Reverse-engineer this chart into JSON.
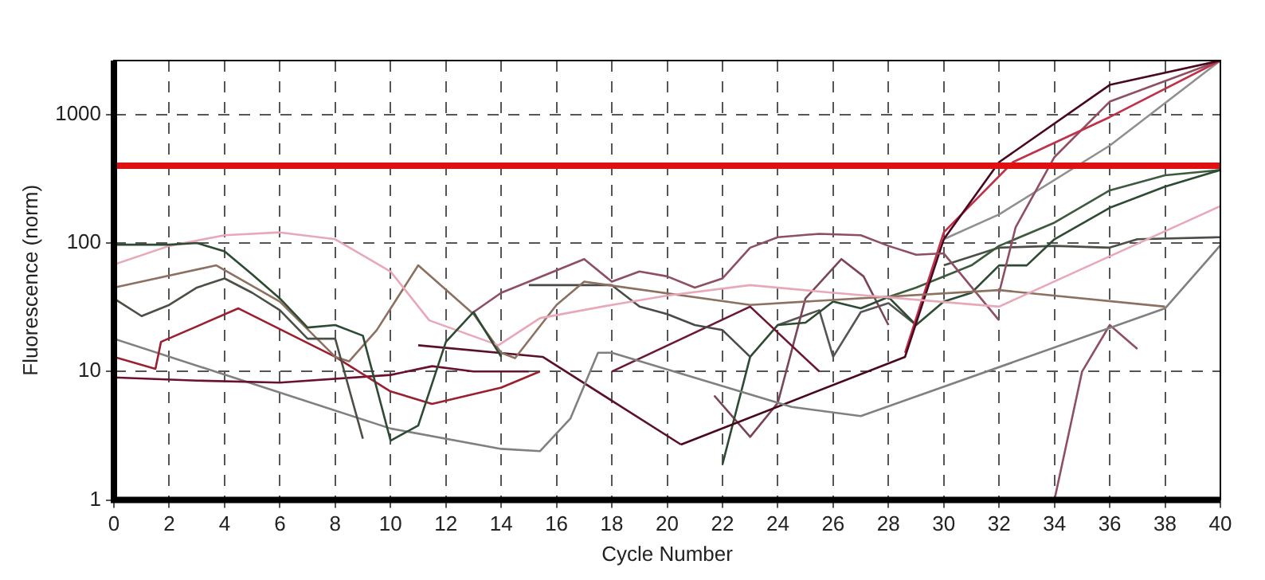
{
  "chart_data": {
    "type": "line",
    "xlabel": "Cycle Number",
    "ylabel": "Fluorescence (norm)",
    "xlim": [
      0,
      40
    ],
    "xticks": [
      0,
      2,
      4,
      6,
      8,
      10,
      12,
      14,
      16,
      18,
      20,
      22,
      24,
      26,
      28,
      30,
      32,
      34,
      36,
      38,
      40
    ],
    "ylim": [
      1,
      2630
    ],
    "yticks": [
      1,
      10,
      100,
      1000
    ],
    "log": "y",
    "grid": true,
    "legend": false,
    "marker": "none",
    "line_style": "solid",
    "ref_lines": [
      {
        "axis": "y",
        "value": 400,
        "color": "#e01010"
      }
    ],
    "series": [
      {
        "color": "#2d4a32",
        "x": [
          0,
          1,
          2,
          3,
          4,
          5,
          6,
          7,
          8,
          9,
          10,
          11,
          12,
          13,
          14
        ],
        "values": [
          97,
          97,
          97,
          100,
          86,
          57,
          37,
          22,
          23,
          19,
          2.9,
          3.8,
          17,
          29,
          13
        ]
      },
      {
        "color": "#4a5045",
        "x": [
          0,
          1,
          2,
          3,
          4,
          5,
          6,
          7,
          8,
          9
        ],
        "values": [
          37,
          27,
          33,
          45,
          53,
          41,
          30,
          18,
          18,
          3
        ]
      },
      {
        "color": "#e8a8b8",
        "x": [
          0,
          2,
          4,
          6,
          8,
          10,
          11.4,
          13.9,
          15.4,
          18,
          20,
          23,
          26,
          32,
          40
        ],
        "values": [
          68,
          95,
          115,
          121,
          107,
          60,
          25,
          16,
          26,
          33,
          39,
          47,
          41,
          32,
          194
        ]
      },
      {
        "color": "#8c7060",
        "x": [
          0,
          3.7,
          6,
          8,
          8.5,
          9.5,
          11,
          13,
          14,
          14.5,
          16,
          17,
          23,
          32,
          38
        ],
        "values": [
          45,
          67,
          35,
          13,
          12,
          21,
          67,
          28,
          14,
          12.7,
          33,
          50,
          33,
          43,
          32
        ]
      },
      {
        "color": "#9a2030",
        "x": [
          0,
          1.5,
          1.7,
          4.5,
          8,
          10,
          11.5,
          14,
          15.4
        ],
        "values": [
          13,
          10.5,
          17,
          31,
          13,
          7,
          5.6,
          7.5,
          10
        ]
      },
      {
        "color": "#6a1030",
        "x": [
          0,
          3,
          6,
          10,
          11.5,
          13,
          15
        ],
        "values": [
          9,
          8.5,
          8.2,
          9.4,
          11,
          10,
          10
        ]
      },
      {
        "color": "#808080",
        "x": [
          0,
          10,
          14,
          15.4,
          16.5,
          17.5,
          18,
          24.5,
          27,
          38,
          40
        ],
        "values": [
          18,
          3.6,
          2.5,
          2.4,
          4.3,
          14,
          14,
          5.3,
          4.5,
          31,
          96
        ]
      },
      {
        "color": "#8e4f62",
        "x": [
          13,
          14,
          15,
          17,
          18,
          19,
          20,
          21,
          22,
          23,
          24,
          25.5,
          27,
          28,
          29,
          30,
          32
        ],
        "values": [
          29,
          41,
          50,
          75,
          50,
          60,
          55,
          45,
          53,
          92,
          111,
          118,
          115,
          95,
          81,
          83,
          25
        ]
      },
      {
        "color": "#4a4a48",
        "x": [
          15,
          18,
          19,
          20,
          21,
          22,
          23
        ],
        "values": [
          47,
          47,
          32,
          28,
          23,
          21,
          13
        ]
      },
      {
        "color": "#5a1028",
        "x": [
          11,
          15.5,
          20.5
        ],
        "values": [
          16,
          13,
          2.7
        ]
      },
      {
        "color": "#6a1830",
        "x": [
          18,
          23,
          25.5
        ],
        "values": [
          10,
          32,
          10
        ]
      },
      {
        "color": "#4a0820",
        "x": [
          20.5,
          28.6,
          30,
          32,
          36,
          40
        ],
        "values": [
          2.7,
          13,
          107,
          426,
          1700,
          2630
        ]
      },
      {
        "color": "#c03048",
        "x": [
          28.6,
          30,
          32.5,
          36,
          40
        ],
        "values": [
          14,
          121,
          426,
          955,
          2630
        ]
      },
      {
        "color": "#8e4f62",
        "x": [
          32,
          32.6,
          34,
          36,
          40
        ],
        "values": [
          41,
          133,
          466,
          1260,
          2630
        ]
      },
      {
        "color": "#909090",
        "x": [
          30,
          32,
          36,
          40
        ],
        "values": [
          107,
          167,
          573,
          2630
        ]
      },
      {
        "color": "#2d4a32",
        "x": [
          22,
          23,
          24,
          25,
          26,
          27,
          28,
          29,
          30,
          31,
          32,
          33,
          34,
          36,
          38,
          40
        ],
        "values": [
          1.9,
          13,
          23,
          24,
          35,
          31,
          38,
          23,
          35,
          41,
          67,
          67,
          107,
          188,
          275,
          370
        ]
      },
      {
        "color": "#3d5a3f",
        "x": [
          28,
          29,
          31,
          32,
          34,
          36,
          38,
          40
        ],
        "values": [
          38,
          45,
          67,
          95,
          144,
          257,
          337,
          370
        ]
      },
      {
        "color": "#4a5045",
        "x": [
          30,
          32,
          34,
          36,
          37,
          40
        ],
        "values": [
          67,
          92,
          95,
          92,
          107,
          111
        ]
      },
      {
        "color": "#8e4f62",
        "x": [
          34,
          35,
          36,
          37
        ],
        "values": [
          1,
          10,
          23,
          15
        ]
      },
      {
        "color": "#7a4555",
        "x": [
          21.7,
          23,
          24,
          25,
          26.3,
          27.1,
          28
        ],
        "values": [
          6.5,
          3.1,
          5.7,
          37,
          75,
          55,
          23
        ]
      },
      {
        "color": "#555555",
        "x": [
          24,
          25.5,
          26,
          27,
          28,
          29
        ],
        "values": [
          23,
          30,
          13,
          29,
          34,
          23
        ]
      }
    ]
  }
}
